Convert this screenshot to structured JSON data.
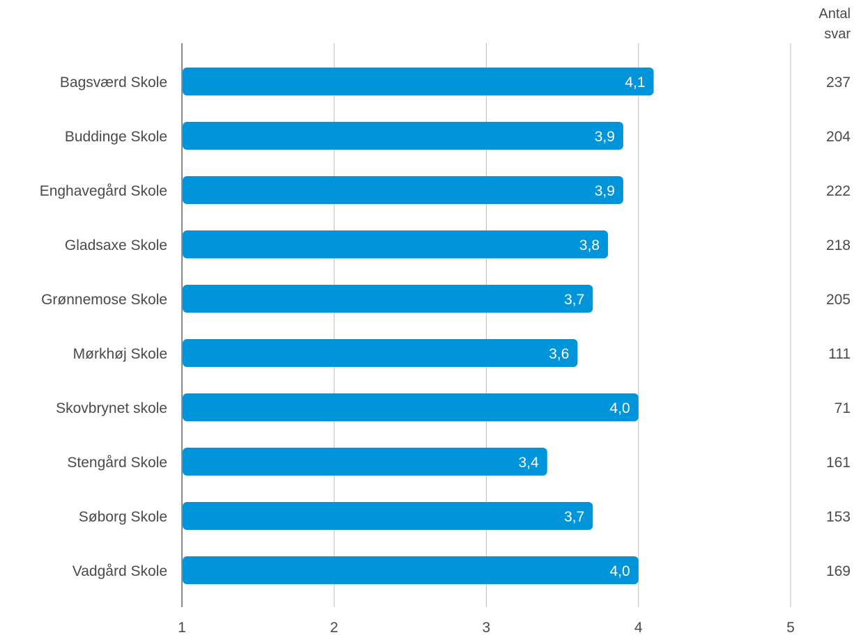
{
  "chart_data": {
    "type": "bar",
    "orientation": "horizontal",
    "categories": [
      "Bagsværd Skole",
      "Buddinge Skole",
      "Enghavegård Skole",
      "Gladsaxe Skole",
      "Grønnemose Skole",
      "Mørkhøj Skole",
      "Skovbrynet skole",
      "Stengård Skole",
      "Søborg Skole",
      "Vadgård Skole"
    ],
    "values": [
      4.1,
      3.9,
      3.9,
      3.8,
      3.7,
      3.6,
      4.0,
      3.4,
      3.7,
      4.0
    ],
    "value_labels": [
      "4,1",
      "3,9",
      "3,9",
      "3,8",
      "3,7",
      "3,6",
      "4,0",
      "3,4",
      "3,7",
      "4,0"
    ],
    "xlim": [
      1,
      5
    ],
    "x_ticks": [
      "1",
      "2",
      "3",
      "4",
      "5"
    ],
    "grid": true,
    "bar_color": "#0095DA",
    "counts_header": [
      "Antal",
      "svar"
    ],
    "counts": [
      "237",
      "204",
      "222",
      "218",
      "205",
      "111",
      "71",
      "161",
      "153",
      "169"
    ]
  }
}
